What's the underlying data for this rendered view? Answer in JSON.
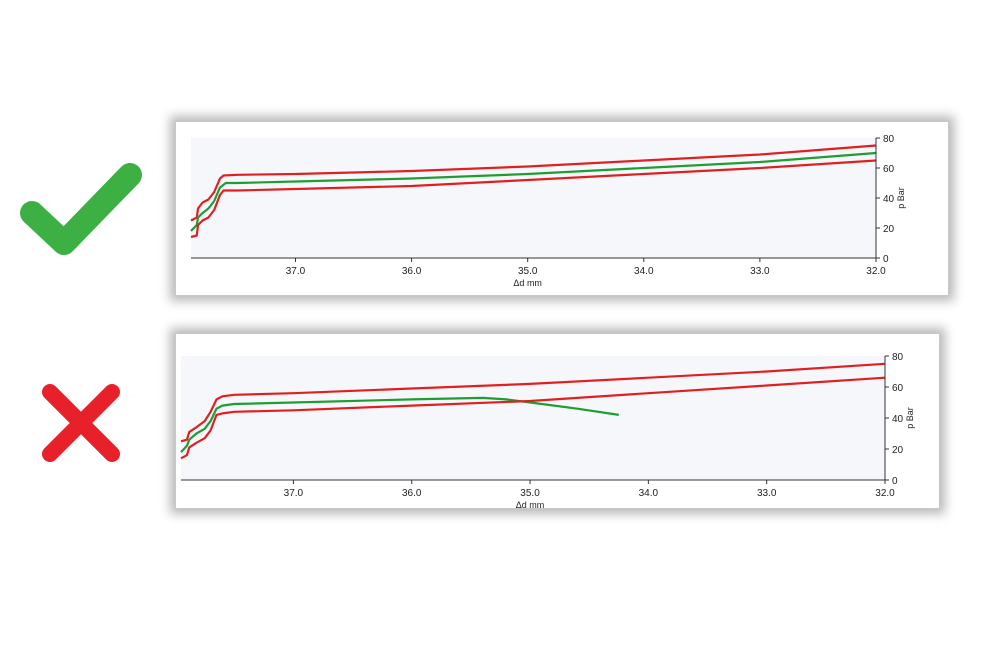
{
  "colors": {
    "limit_line": "#e02020",
    "curve_line": "#1e9e32",
    "check": "#3cb043",
    "cross": "#e8202a",
    "plot_bg": "#f6f7fb",
    "axis": "#333333"
  },
  "icons": {
    "good": "check-icon",
    "bad": "cross-icon"
  },
  "chart_data": [
    {
      "type": "line",
      "verdict": "good",
      "xlabel": "Δd mm",
      "ylabel": "p Bar",
      "xlim": [
        37.9,
        32.0
      ],
      "ylim": [
        0,
        80
      ],
      "x_reversed": true,
      "grid": false,
      "x_ticks": [
        "37.0",
        "36.0",
        "35.0",
        "34.0",
        "33.0",
        "32.0"
      ],
      "y_ticks": [
        "0",
        "20",
        "40",
        "60",
        "80"
      ],
      "series": [
        {
          "role": "upper-limit",
          "points": [
            [
              37.9,
              25
            ],
            [
              37.85,
              27
            ],
            [
              37.84,
              33
            ],
            [
              37.8,
              37
            ],
            [
              37.75,
              39
            ],
            [
              37.7,
              44
            ],
            [
              37.65,
              53
            ],
            [
              37.62,
              55
            ],
            [
              37.5,
              55.5
            ],
            [
              37.0,
              56
            ],
            [
              36.0,
              58
            ],
            [
              35.0,
              61
            ],
            [
              34.0,
              65
            ],
            [
              33.0,
              69
            ],
            [
              32.0,
              75
            ]
          ]
        },
        {
          "role": "process-curve",
          "points": [
            [
              37.9,
              18
            ],
            [
              37.85,
              22
            ],
            [
              37.84,
              27
            ],
            [
              37.8,
              30
            ],
            [
              37.75,
              33
            ],
            [
              37.7,
              38
            ],
            [
              37.65,
              47
            ],
            [
              37.6,
              50
            ],
            [
              37.5,
              50
            ],
            [
              37.0,
              51
            ],
            [
              36.0,
              53
            ],
            [
              35.0,
              56
            ],
            [
              34.0,
              60
            ],
            [
              33.0,
              64
            ],
            [
              32.0,
              70
            ]
          ]
        },
        {
          "role": "lower-limit",
          "points": [
            [
              37.9,
              14
            ],
            [
              37.85,
              15
            ],
            [
              37.84,
              22
            ],
            [
              37.8,
              25
            ],
            [
              37.75,
              27
            ],
            [
              37.7,
              32
            ],
            [
              37.65,
              42
            ],
            [
              37.62,
              45
            ],
            [
              37.5,
              45
            ],
            [
              37.0,
              46
            ],
            [
              36.0,
              48
            ],
            [
              35.0,
              52
            ],
            [
              34.0,
              56
            ],
            [
              33.0,
              60
            ],
            [
              32.0,
              65
            ]
          ]
        }
      ]
    },
    {
      "type": "line",
      "verdict": "bad",
      "xlabel": "Δd mm",
      "ylabel": "p Bar",
      "xlim": [
        37.95,
        32.0
      ],
      "ylim": [
        0,
        80
      ],
      "x_reversed": true,
      "grid": false,
      "x_ticks": [
        "37.0",
        "36.0",
        "35.0",
        "34.0",
        "33.0",
        "32.0"
      ],
      "y_ticks": [
        "0",
        "20",
        "40",
        "60",
        "80"
      ],
      "series": [
        {
          "role": "upper-limit",
          "points": [
            [
              37.95,
              25
            ],
            [
              37.9,
              26
            ],
            [
              37.88,
              31
            ],
            [
              37.82,
              34
            ],
            [
              37.75,
              38
            ],
            [
              37.7,
              44
            ],
            [
              37.65,
              52
            ],
            [
              37.6,
              54
            ],
            [
              37.5,
              55
            ],
            [
              37.0,
              56
            ],
            [
              36.0,
              59
            ],
            [
              35.0,
              62
            ],
            [
              34.0,
              66
            ],
            [
              33.0,
              70
            ],
            [
              32.0,
              75
            ]
          ]
        },
        {
          "role": "process-curve",
          "points": [
            [
              37.95,
              18
            ],
            [
              37.9,
              22
            ],
            [
              37.88,
              26
            ],
            [
              37.82,
              30
            ],
            [
              37.75,
              33
            ],
            [
              37.7,
              38
            ],
            [
              37.65,
              46
            ],
            [
              37.6,
              48
            ],
            [
              37.5,
              49
            ],
            [
              37.0,
              50
            ],
            [
              36.0,
              52
            ],
            [
              35.4,
              53
            ],
            [
              35.2,
              52
            ],
            [
              34.9,
              49
            ],
            [
              34.6,
              46
            ],
            [
              34.25,
              42
            ]
          ]
        },
        {
          "role": "lower-limit",
          "points": [
            [
              37.95,
              14
            ],
            [
              37.9,
              16
            ],
            [
              37.88,
              21
            ],
            [
              37.82,
              24
            ],
            [
              37.75,
              27
            ],
            [
              37.7,
              32
            ],
            [
              37.65,
              42
            ],
            [
              37.6,
              43
            ],
            [
              37.5,
              44
            ],
            [
              37.0,
              45
            ],
            [
              36.0,
              48
            ],
            [
              35.0,
              51
            ],
            [
              34.0,
              56
            ],
            [
              33.0,
              61
            ],
            [
              32.0,
              66
            ]
          ]
        }
      ]
    }
  ]
}
